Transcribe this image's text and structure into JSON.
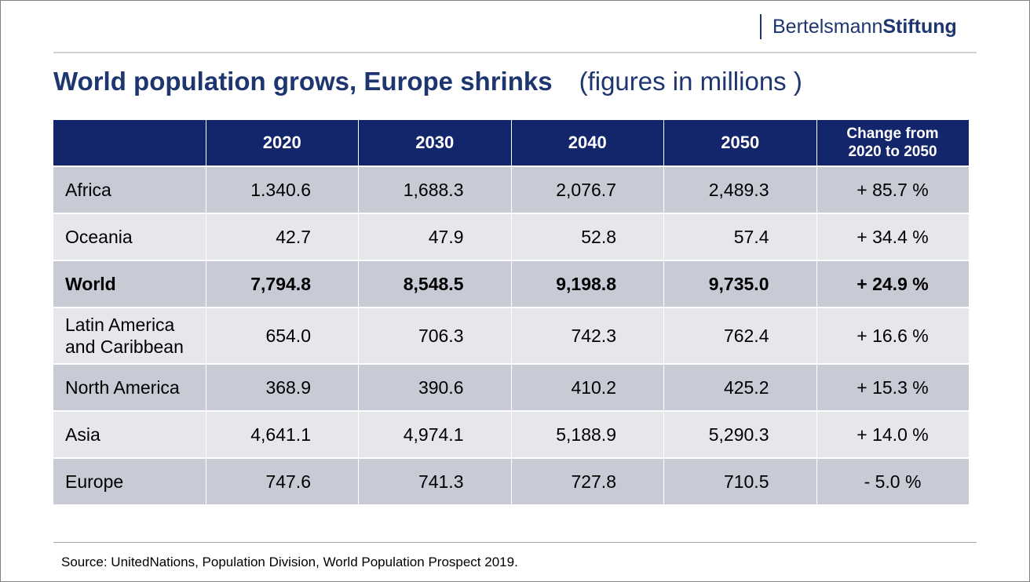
{
  "logo": {
    "light": "Bertelsmann",
    "bold": "Stiftung"
  },
  "title": {
    "main": "World population grows, Europe shrinks",
    "sub": "(figures in millions )"
  },
  "table": {
    "headers": [
      "",
      "2020",
      "2030",
      "2040",
      "2050"
    ],
    "change_header_line1": "Change from",
    "change_header_line2": "2020 to 2050",
    "rows": [
      {
        "region": "Africa",
        "region2": "",
        "values": [
          "1.340.6",
          "1,688.3",
          "2,076.7",
          "2,489.3"
        ],
        "change": "+ 85.7 %"
      },
      {
        "region": "Oceania",
        "region2": "",
        "values": [
          "42.7",
          "47.9",
          "52.8",
          "57.4"
        ],
        "change": "+ 34.4 %"
      },
      {
        "region": "World",
        "region2": "",
        "values": [
          "7,794.8",
          "8,548.5",
          "9,198.8",
          "9,735.0"
        ],
        "change": "+ 24.9 %"
      },
      {
        "region": "Latin America",
        "region2": "and Caribbean",
        "values": [
          "654.0",
          "706.3",
          "742.3",
          "762.4"
        ],
        "change": "+ 16.6 %"
      },
      {
        "region": "North America",
        "region2": "",
        "values": [
          "368.9",
          "390.6",
          "410.2",
          "425.2"
        ],
        "change": "+ 15.3 %"
      },
      {
        "region": "Asia",
        "region2": "",
        "values": [
          "4,641.1",
          "4,974.1",
          "5,188.9",
          "5,290.3"
        ],
        "change": "+ 14.0 %"
      },
      {
        "region": "Europe",
        "region2": "",
        "values": [
          "747.6",
          "741.3",
          "727.8",
          "710.5"
        ],
        "change": "- 5.0 %"
      }
    ]
  },
  "source": "Source: UnitedNations, Population Division, World Population Prospect 2019."
}
